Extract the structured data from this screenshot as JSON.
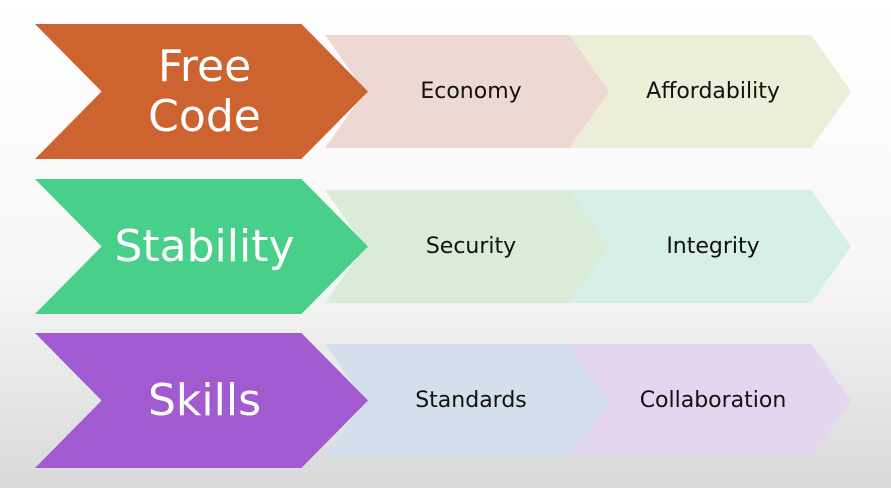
{
  "rows": [
    {
      "main": {
        "label": "Free\nCode",
        "color": "#cd6430"
      },
      "items": [
        {
          "label": "Economy",
          "color": "#eed8d4"
        },
        {
          "label": "Affordability",
          "color": "#eceed7"
        }
      ]
    },
    {
      "main": {
        "label": "Stability",
        "color": "#48cf8a"
      },
      "items": [
        {
          "label": "Security",
          "color": "#d9ecd8"
        },
        {
          "label": "Integrity",
          "color": "#d6efe9"
        }
      ]
    },
    {
      "main": {
        "label": "Skills",
        "color": "#a25ad0"
      },
      "items": [
        {
          "label": "Standards",
          "color": "#d4dfee"
        },
        {
          "label": "Collaboration",
          "color": "#e4d6ef"
        }
      ]
    }
  ]
}
